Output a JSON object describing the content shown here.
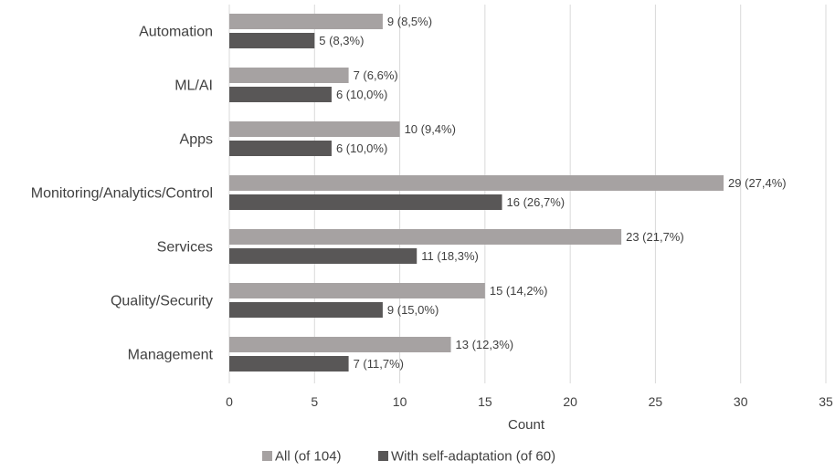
{
  "chart_data": {
    "type": "bar",
    "orientation": "horizontal",
    "categories": [
      "Automation",
      "ML/AI",
      "Apps",
      "Monitoring/Analytics/Control",
      "Services",
      "Quality/Security",
      "Management"
    ],
    "series": [
      {
        "name": "All (of 104)",
        "color": "#a6a2a2",
        "values": [
          9,
          7,
          10,
          29,
          23,
          15,
          13
        ],
        "labels": [
          "9 (8,5%)",
          "7 (6,6%)",
          "10 (9,4%)",
          "29 (27,4%)",
          "23 (21,7%)",
          "15 (14,2%)",
          "13 (12,3%)"
        ]
      },
      {
        "name": "With self-adaptation (of 60)",
        "color": "#595757",
        "values": [
          5,
          6,
          6,
          16,
          11,
          9,
          7
        ],
        "labels": [
          "5 (8,3%)",
          "6 (10,0%)",
          "6 (10,0%)",
          "16 (26,7%)",
          "11 (18,3%)",
          "9 (15,0%)",
          "7 (11,7%)"
        ]
      }
    ],
    "xlabel": "Count",
    "xlim": [
      0,
      35
    ],
    "xticks": [
      0,
      5,
      10,
      15,
      20,
      25,
      30,
      35
    ],
    "grid": true,
    "legend": "bottom"
  }
}
